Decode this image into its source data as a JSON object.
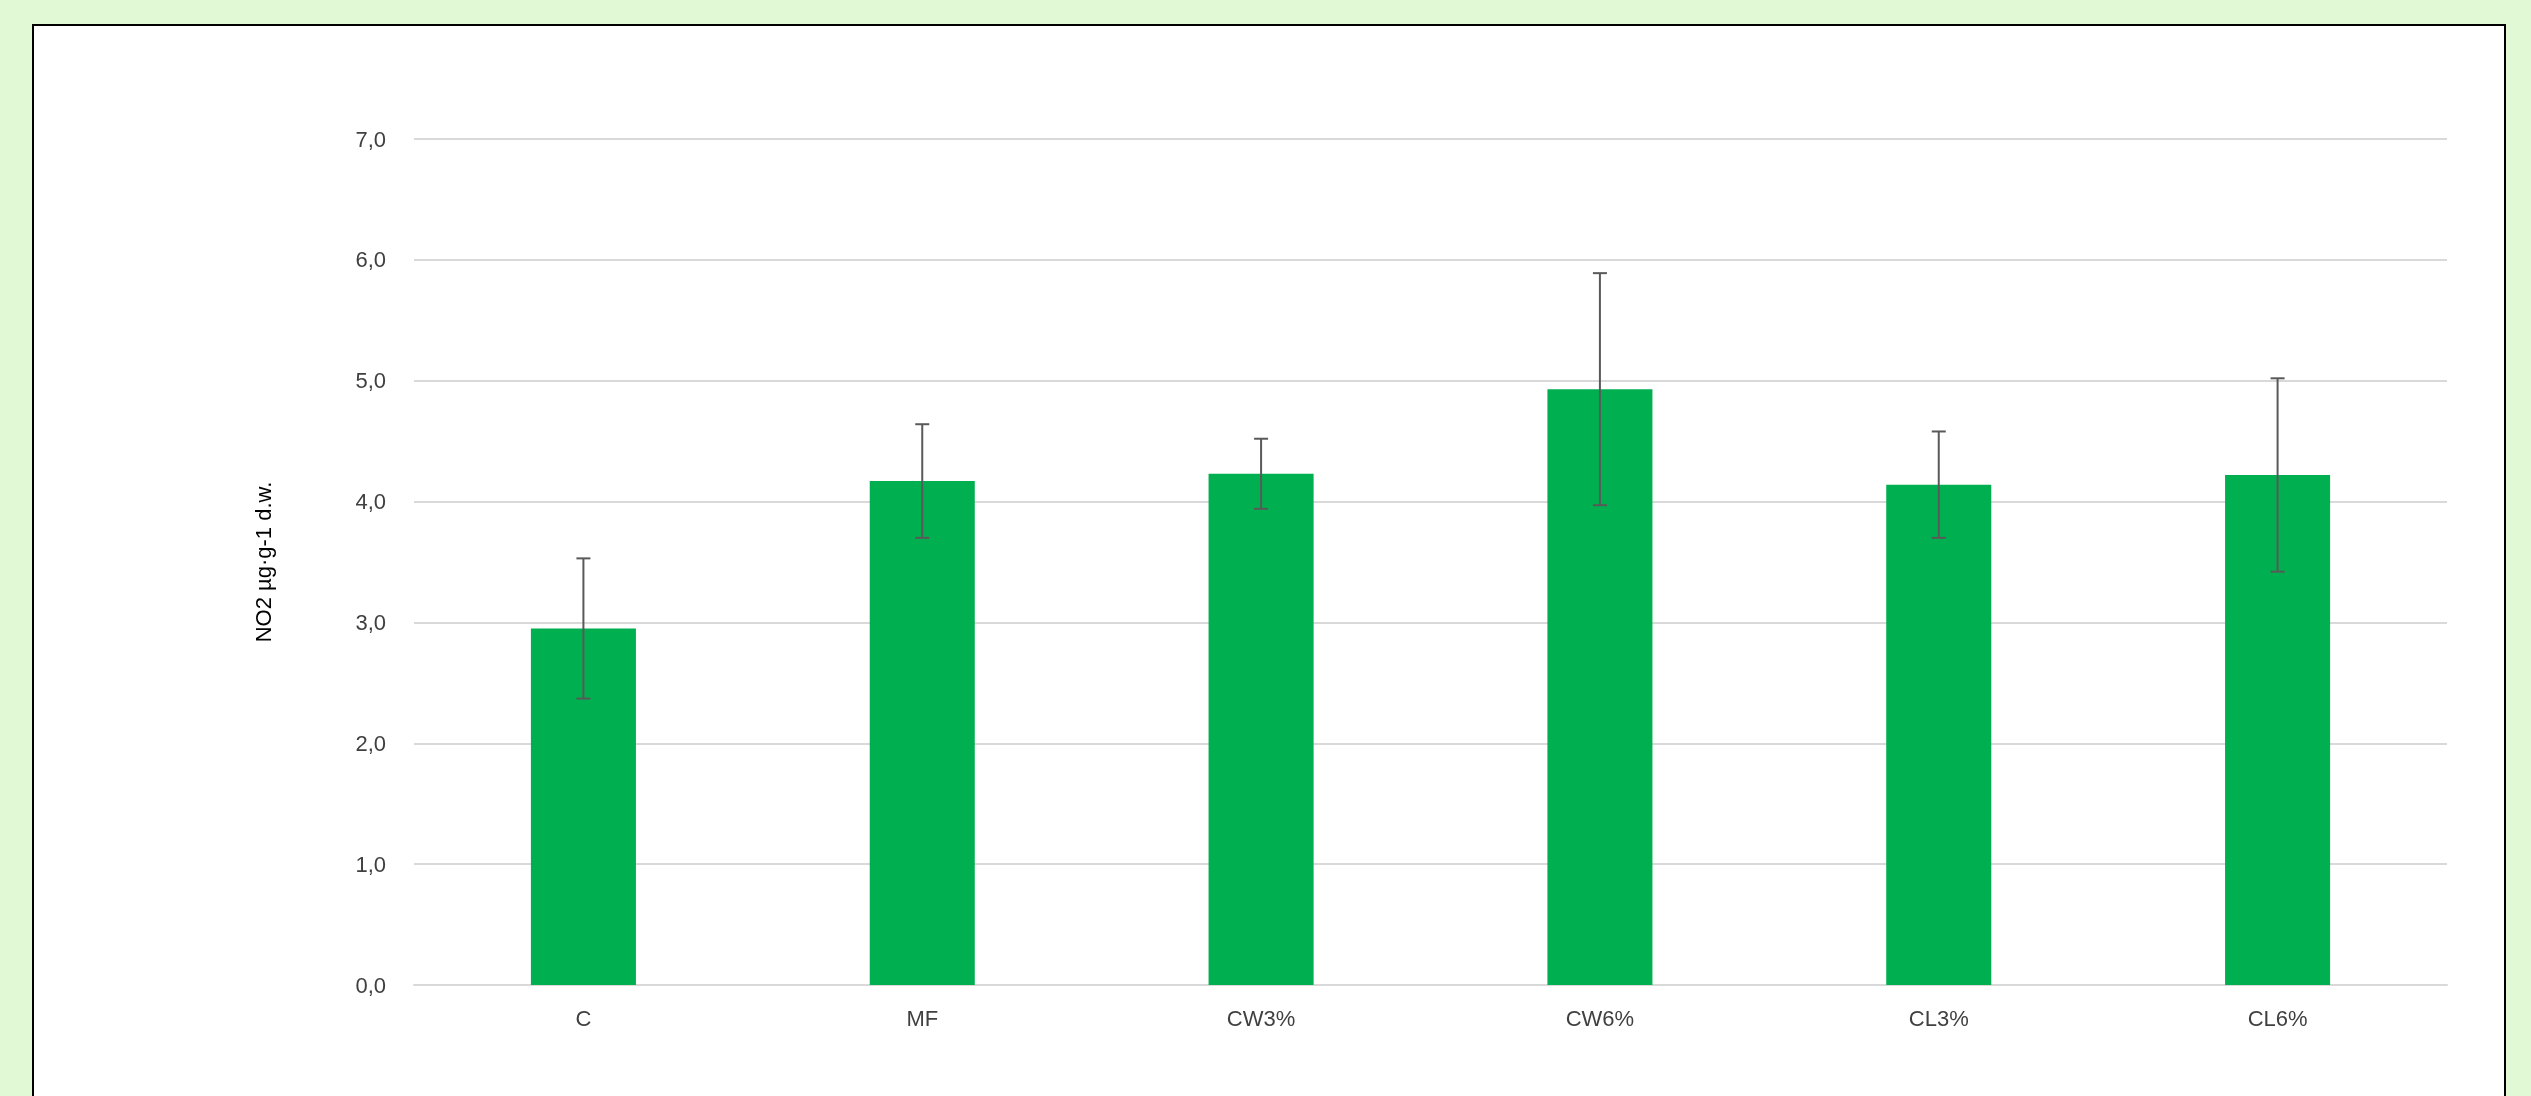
{
  "chart_data": {
    "type": "bar",
    "ylabel": "NO2 µg·g-1 d.w.",
    "categories": [
      "C",
      "MF",
      "CW3%",
      "CW6%",
      "CL3%",
      "CL6%"
    ],
    "values": [
      2.95,
      4.17,
      4.23,
      4.93,
      4.14,
      4.22
    ],
    "errors": [
      0.58,
      0.47,
      0.29,
      0.96,
      0.44,
      0.8
    ],
    "color": "#00b050",
    "ylim": [
      0,
      7
    ],
    "yticks": [
      {
        "value": 0,
        "label": "0,0"
      },
      {
        "value": 1,
        "label": "1,0"
      },
      {
        "value": 2,
        "label": "2,0"
      },
      {
        "value": 3,
        "label": "3,0"
      },
      {
        "value": 4,
        "label": "4,0"
      },
      {
        "value": 5,
        "label": "5,0"
      },
      {
        "value": 6,
        "label": "6,0"
      },
      {
        "value": 7,
        "label": "7,0"
      }
    ],
    "grid": "y"
  }
}
